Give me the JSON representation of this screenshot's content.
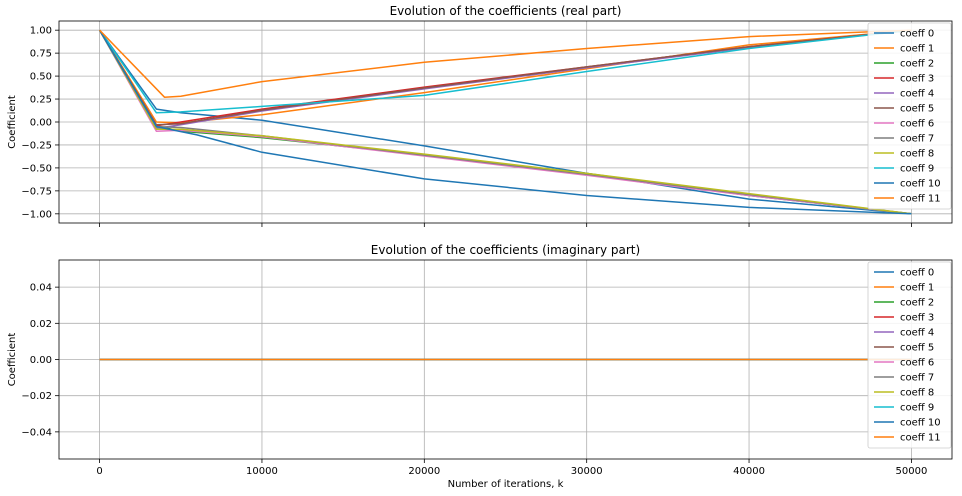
{
  "chart_data": [
    {
      "type": "line",
      "title": "Evolution of the coefficients (real part)",
      "xlabel": "",
      "ylabel": "Coefficient",
      "xlim": [
        -2500,
        52500
      ],
      "ylim": [
        -1.1,
        1.1
      ],
      "xticks": [
        0,
        10000,
        20000,
        30000,
        40000,
        50000
      ],
      "xtick_labels_visible": false,
      "yticks": [
        1.0,
        0.75,
        0.5,
        0.25,
        0.0,
        -0.25,
        -0.5,
        -0.75,
        -1.0
      ],
      "ytick_labels": [
        "1.00",
        "0.75",
        "0.50",
        "0.25",
        "0.00",
        "−0.25",
        "−0.50",
        "−0.75",
        "−1.00"
      ],
      "grid": true,
      "legend_position": "top-right",
      "series": [
        {
          "name": "coeff 0",
          "color": "#1f77b4",
          "x": [
            0,
            3500,
            5000,
            10000,
            20000,
            30000,
            40000,
            50000
          ],
          "y": [
            1.0,
            0.14,
            0.1,
            0.02,
            -0.26,
            -0.56,
            -0.84,
            -1.0
          ]
        },
        {
          "name": "coeff 1",
          "color": "#ff7f0e",
          "x": [
            0,
            3500,
            5000,
            10000,
            20000,
            30000,
            40000,
            50000
          ],
          "y": [
            1.0,
            0.0,
            -0.01,
            0.08,
            0.32,
            0.58,
            0.84,
            1.0
          ]
        },
        {
          "name": "coeff 2",
          "color": "#2ca02c",
          "x": [
            0,
            3500,
            5000,
            10000,
            20000,
            30000,
            40000,
            50000
          ],
          "y": [
            1.0,
            -0.04,
            -0.1,
            -0.17,
            -0.36,
            -0.56,
            -0.8,
            -1.0
          ]
        },
        {
          "name": "coeff 3",
          "color": "#d62728",
          "x": [
            0,
            3500,
            5000,
            10000,
            20000,
            30000,
            40000,
            50000
          ],
          "y": [
            1.0,
            -0.04,
            0.0,
            0.14,
            0.38,
            0.6,
            0.82,
            1.0
          ]
        },
        {
          "name": "coeff 4",
          "color": "#9467bd",
          "x": [
            0,
            3500,
            5000,
            10000,
            20000,
            30000,
            40000,
            50000
          ],
          "y": [
            1.0,
            -0.07,
            -0.03,
            0.12,
            0.36,
            0.59,
            0.81,
            1.0
          ]
        },
        {
          "name": "coeff 5",
          "color": "#8c564b",
          "x": [
            0,
            3500,
            5000,
            10000,
            20000,
            30000,
            40000,
            50000
          ],
          "y": [
            1.0,
            -0.03,
            -0.02,
            0.13,
            0.37,
            0.6,
            0.82,
            1.0
          ]
        },
        {
          "name": "coeff 6",
          "color": "#e377c2",
          "x": [
            0,
            3500,
            5000,
            10000,
            20000,
            30000,
            40000,
            50000
          ],
          "y": [
            1.0,
            -0.1,
            -0.09,
            -0.16,
            -0.37,
            -0.58,
            -0.8,
            -1.0
          ]
        },
        {
          "name": "coeff 7",
          "color": "#7f7f7f",
          "x": [
            0,
            3500,
            5000,
            10000,
            20000,
            30000,
            40000,
            50000
          ],
          "y": [
            1.0,
            -0.05,
            -0.06,
            -0.15,
            -0.36,
            -0.57,
            -0.79,
            -1.0
          ]
        },
        {
          "name": "coeff 8",
          "color": "#bcbd22",
          "x": [
            0,
            3500,
            5000,
            10000,
            20000,
            30000,
            40000,
            50000
          ],
          "y": [
            1.0,
            -0.08,
            -0.08,
            -0.15,
            -0.35,
            -0.56,
            -0.78,
            -1.0
          ]
        },
        {
          "name": "coeff 9",
          "color": "#17becf",
          "x": [
            0,
            3500,
            5000,
            10000,
            20000,
            30000,
            40000,
            50000
          ],
          "y": [
            1.0,
            0.1,
            0.11,
            0.17,
            0.29,
            0.55,
            0.8,
            1.0
          ]
        },
        {
          "name": "coeff 10",
          "color": "#1f77b4",
          "x": [
            0,
            3500,
            6000,
            10000,
            20000,
            30000,
            40000,
            50000
          ],
          "y": [
            1.0,
            -0.05,
            -0.14,
            -0.33,
            -0.62,
            -0.8,
            -0.93,
            -1.0
          ]
        },
        {
          "name": "coeff 11",
          "color": "#ff7f0e",
          "x": [
            0,
            4000,
            5000,
            10000,
            20000,
            30000,
            40000,
            50000
          ],
          "y": [
            1.0,
            0.27,
            0.28,
            0.44,
            0.65,
            0.8,
            0.93,
            1.0
          ]
        }
      ]
    },
    {
      "type": "line",
      "title": "Evolution of the coefficients (imaginary part)",
      "xlabel": "Number of iterations, k",
      "ylabel": "Coefficient",
      "xlim": [
        -2500,
        52500
      ],
      "ylim": [
        -0.055,
        0.055
      ],
      "xticks": [
        0,
        10000,
        20000,
        30000,
        40000,
        50000
      ],
      "xtick_labels": [
        "0",
        "10000",
        "20000",
        "30000",
        "40000",
        "50000"
      ],
      "yticks": [
        0.04,
        0.02,
        0.0,
        -0.02,
        -0.04
      ],
      "ytick_labels": [
        "0.04",
        "0.02",
        "0.00",
        "−0.02",
        "−0.04"
      ],
      "grid": true,
      "legend_position": "top-right",
      "series": [
        {
          "name": "coeff 0",
          "color": "#1f77b4",
          "x": [
            0,
            50000
          ],
          "y": [
            0,
            0
          ]
        },
        {
          "name": "coeff 1",
          "color": "#ff7f0e",
          "x": [
            0,
            50000
          ],
          "y": [
            0,
            0
          ]
        },
        {
          "name": "coeff 2",
          "color": "#2ca02c",
          "x": [
            0,
            50000
          ],
          "y": [
            0,
            0
          ]
        },
        {
          "name": "coeff 3",
          "color": "#d62728",
          "x": [
            0,
            50000
          ],
          "y": [
            0,
            0
          ]
        },
        {
          "name": "coeff 4",
          "color": "#9467bd",
          "x": [
            0,
            50000
          ],
          "y": [
            0,
            0
          ]
        },
        {
          "name": "coeff 5",
          "color": "#8c564b",
          "x": [
            0,
            50000
          ],
          "y": [
            0,
            0
          ]
        },
        {
          "name": "coeff 6",
          "color": "#e377c2",
          "x": [
            0,
            50000
          ],
          "y": [
            0,
            0
          ]
        },
        {
          "name": "coeff 7",
          "color": "#7f7f7f",
          "x": [
            0,
            50000
          ],
          "y": [
            0,
            0
          ]
        },
        {
          "name": "coeff 8",
          "color": "#bcbd22",
          "x": [
            0,
            50000
          ],
          "y": [
            0,
            0
          ]
        },
        {
          "name": "coeff 9",
          "color": "#17becf",
          "x": [
            0,
            50000
          ],
          "y": [
            0,
            0
          ]
        },
        {
          "name": "coeff 10",
          "color": "#1f77b4",
          "x": [
            0,
            50000
          ],
          "y": [
            0,
            0
          ]
        },
        {
          "name": "coeff 11",
          "color": "#ff7f0e",
          "x": [
            0,
            50000
          ],
          "y": [
            0,
            0
          ]
        }
      ]
    }
  ]
}
